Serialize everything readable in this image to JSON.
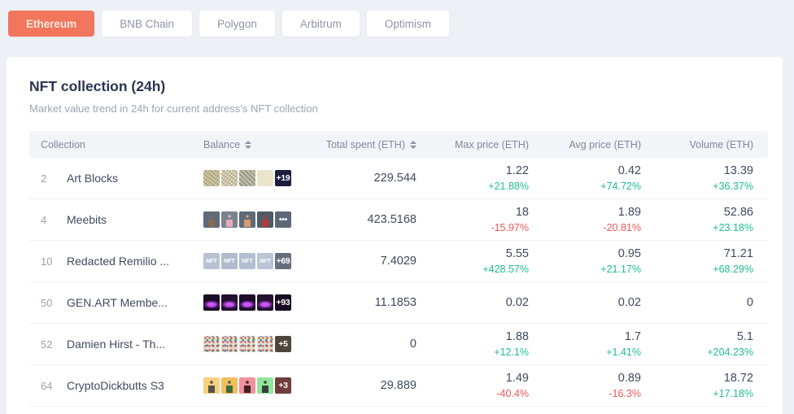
{
  "colors": {
    "accent": "#f2765c",
    "positive": "#1ebd92",
    "negative": "#f25757"
  },
  "tabs": [
    {
      "label": "Ethereum",
      "active": true
    },
    {
      "label": "BNB Chain",
      "active": false
    },
    {
      "label": "Polygon",
      "active": false
    },
    {
      "label": "Arbitrum",
      "active": false
    },
    {
      "label": "Optimism",
      "active": false
    }
  ],
  "card": {
    "title": "NFT collection (24h)",
    "subtitle": "Market value trend in 24h for current address's NFT collection"
  },
  "table": {
    "columns": [
      {
        "label": "Collection",
        "sortable": false
      },
      {
        "label": "Balance",
        "sortable": true
      },
      {
        "label": "Total spent (ETH)",
        "sortable": true
      },
      {
        "label": "Max price (ETH)",
        "sortable": false
      },
      {
        "label": "Avg price (ETH)",
        "sortable": false
      },
      {
        "label": "Volume (ETH)",
        "sortable": false
      }
    ],
    "rows": [
      {
        "rank": "2",
        "name": "Art Blocks",
        "thumbs": [
          {
            "bg": "#d8d1ad",
            "pattern": "sketch"
          },
          {
            "bg": "#e7e0c6",
            "pattern": "sketch"
          },
          {
            "bg": "#999b82",
            "pattern": "stripes"
          },
          {
            "bg": "#eae4ca",
            "pattern": "plain"
          }
        ],
        "badge": {
          "text": "+19",
          "bg": "#1d1e3f"
        },
        "total_spent": "229.544",
        "max_price": {
          "value": "1.22",
          "change": "+21.88%"
        },
        "avg_price": {
          "value": "0.42",
          "change": "+74.72%"
        },
        "volume": {
          "value": "13.39",
          "change": "+36.37%"
        }
      },
      {
        "rank": "4",
        "name": "Meebits",
        "thumbs": [
          {
            "bg": "#5e6b7a",
            "fg": "#8a6b4f",
            "pattern": "figure"
          },
          {
            "bg": "#79838f",
            "fg": "#e8aab8",
            "pattern": "figure"
          },
          {
            "bg": "#5d6a79",
            "fg": "#d79b6b",
            "pattern": "figure"
          },
          {
            "bg": "#4f5b69",
            "fg": "#b03a3a",
            "pattern": "figure"
          }
        ],
        "badge": {
          "text": "•••",
          "bg": "#5c6878"
        },
        "total_spent": "423.5168",
        "max_price": {
          "value": "18",
          "change": "-15.97%"
        },
        "avg_price": {
          "value": "1.89",
          "change": "-20.81%"
        },
        "volume": {
          "value": "52.86",
          "change": "+23.18%"
        }
      },
      {
        "rank": "10",
        "name": "Redacted Remilio ...",
        "thumbs": [
          {
            "bg": "#b7c3d3",
            "pattern": "nft",
            "label": "NFT"
          },
          {
            "bg": "#aebccd",
            "pattern": "nft",
            "label": "NFT"
          },
          {
            "bg": "#b2bfd0",
            "pattern": "nft",
            "label": "NFT"
          },
          {
            "bg": "#b9c5d5",
            "pattern": "nft",
            "label": "NFT"
          }
        ],
        "badge": {
          "text": "+69",
          "bg": "#666e7c"
        },
        "total_spent": "7.4029",
        "max_price": {
          "value": "5.55",
          "change": "+428.57%"
        },
        "avg_price": {
          "value": "0.95",
          "change": "+21.17%"
        },
        "volume": {
          "value": "71.21",
          "change": "+68.29%"
        }
      },
      {
        "rank": "50",
        "name": "GEN.ART Membe...",
        "thumbs": [
          {
            "bg": "#1c0d26",
            "pattern": "wave"
          },
          {
            "bg": "#22102e",
            "pattern": "wave"
          },
          {
            "bg": "#1d0d28",
            "pattern": "wave"
          },
          {
            "bg": "#241230",
            "pattern": "wave"
          }
        ],
        "badge": {
          "text": "+93",
          "bg": "#160b20"
        },
        "total_spent": "11.1853",
        "max_price": {
          "value": "0.02",
          "change": ""
        },
        "avg_price": {
          "value": "0.02",
          "change": ""
        },
        "volume": {
          "value": "0",
          "change": ""
        }
      },
      {
        "rank": "52",
        "name": "Damien Hirst - Th...",
        "thumbs": [
          {
            "bg": "#e6ddcd",
            "pattern": "dots"
          },
          {
            "bg": "#e3dacb",
            "pattern": "dots"
          },
          {
            "bg": "#e8dfd0",
            "pattern": "dots"
          },
          {
            "bg": "#e5dccd",
            "pattern": "dots"
          }
        ],
        "badge": {
          "text": "+5",
          "bg": "#4d463c"
        },
        "total_spent": "0",
        "max_price": {
          "value": "1.88",
          "change": "+12.1%"
        },
        "avg_price": {
          "value": "1.7",
          "change": "+1.41%"
        },
        "volume": {
          "value": "5.1",
          "change": "+204.23%"
        }
      },
      {
        "rank": "64",
        "name": "CryptoDickbutts S3",
        "thumbs": [
          {
            "bg": "#f6cf7f",
            "fg": "#55524a",
            "pattern": "figure"
          },
          {
            "bg": "#f4bd60",
            "fg": "#3d6b3d",
            "pattern": "figure"
          },
          {
            "bg": "#f0919b",
            "fg": "#402020",
            "pattern": "figure"
          },
          {
            "bg": "#90e69c",
            "fg": "#3a3f3a",
            "pattern": "figure"
          }
        ],
        "badge": {
          "text": "+3",
          "bg": "#703d3d"
        },
        "total_spent": "29.889",
        "max_price": {
          "value": "1.49",
          "change": "-40.4%"
        },
        "avg_price": {
          "value": "0.89",
          "change": "-16.3%"
        },
        "volume": {
          "value": "18.72",
          "change": "+17.18%"
        }
      }
    ]
  }
}
